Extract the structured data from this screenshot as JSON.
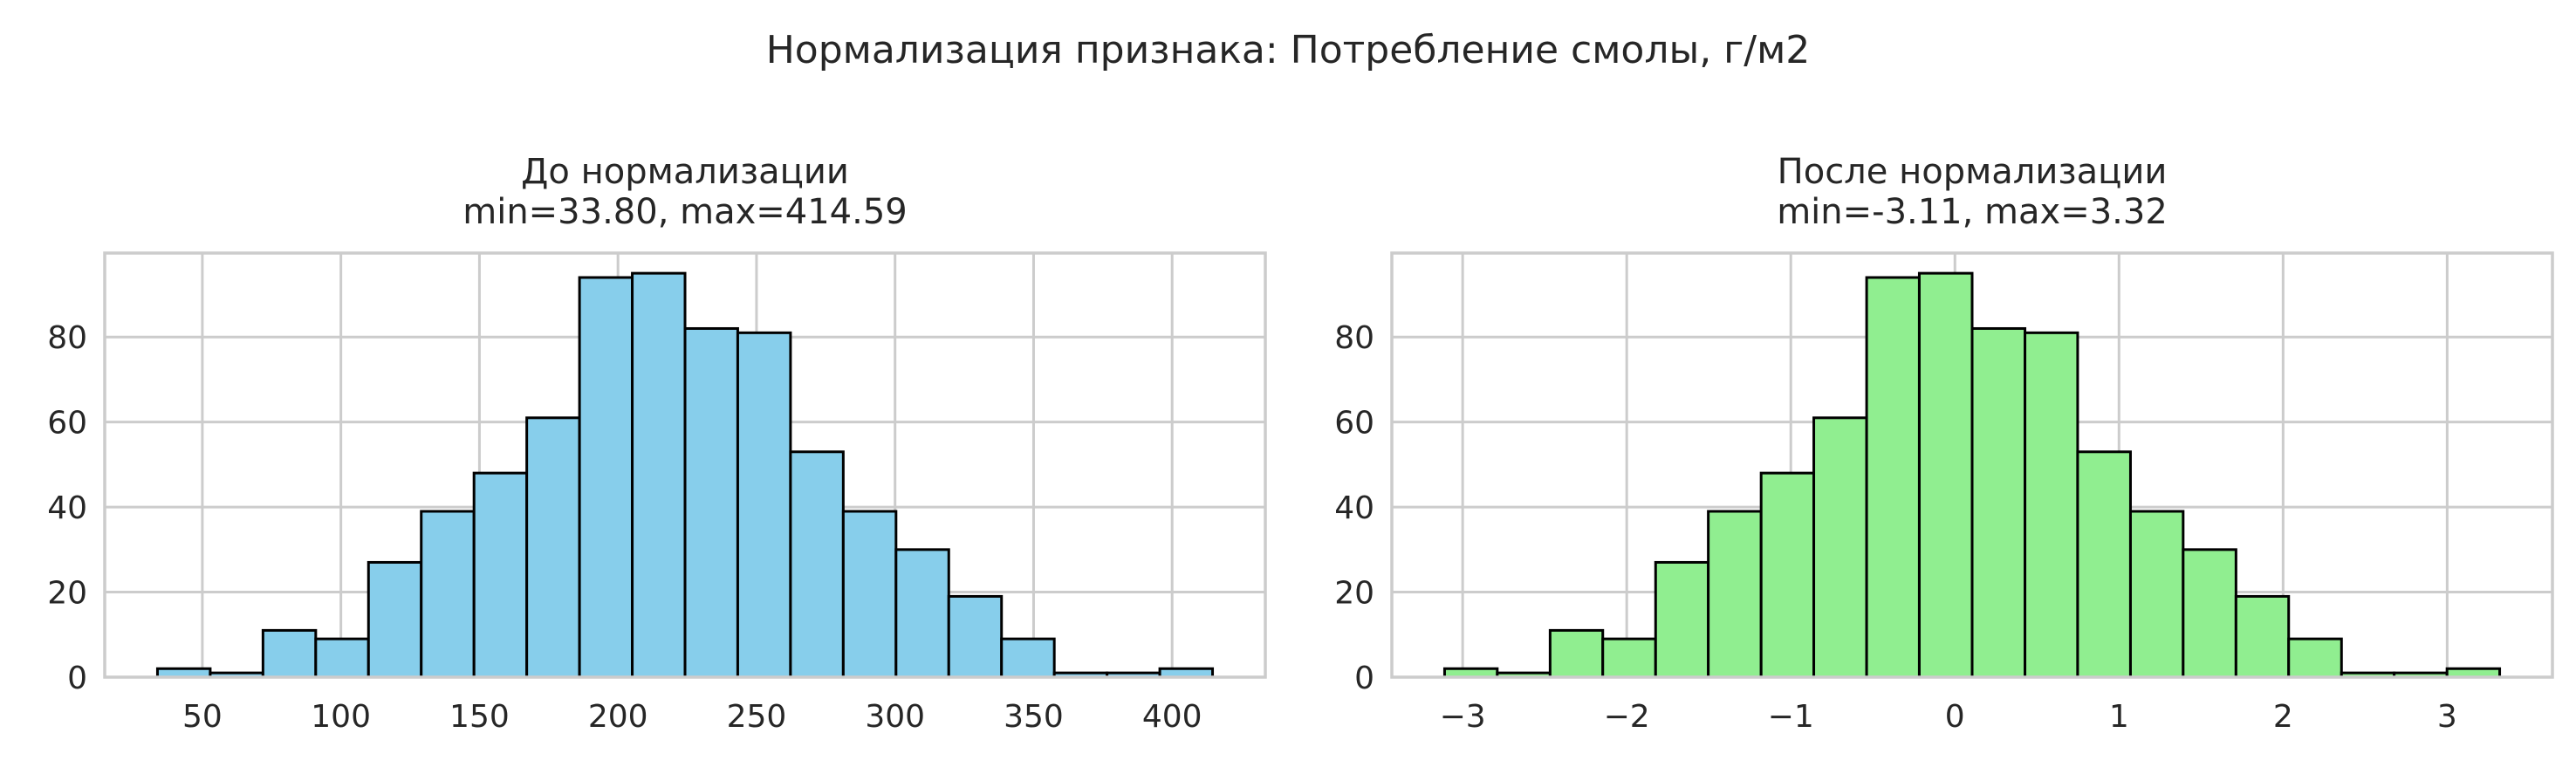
{
  "figure": {
    "suptitle": "Нормализация признака: Потребление смолы, г/м2"
  },
  "chart_data": [
    {
      "type": "bar",
      "title_line1": "До нормализации",
      "title_line2": "min=33.80, max=414.59",
      "xlabel": "",
      "ylabel": "",
      "color": "#87ceeb",
      "bin_edges": [
        33.8,
        52.84,
        71.88,
        90.92,
        109.96,
        129.0,
        148.04,
        167.08,
        186.12,
        205.16,
        224.2,
        243.23,
        262.27,
        281.31,
        300.35,
        319.39,
        338.43,
        357.47,
        376.51,
        395.55,
        414.59
      ],
      "values": [
        2,
        1,
        11,
        9,
        27,
        39,
        48,
        61,
        94,
        95,
        82,
        81,
        53,
        39,
        30,
        19,
        9,
        1,
        1,
        2
      ],
      "xlim": [
        14.76,
        433.63
      ],
      "ylim": [
        0,
        99.75
      ],
      "xticks": [
        50,
        100,
        150,
        200,
        250,
        300,
        350,
        400
      ],
      "xtick_labels": [
        "50",
        "100",
        "150",
        "200",
        "250",
        "300",
        "350",
        "400"
      ],
      "yticks": [
        0,
        20,
        40,
        60,
        80
      ],
      "ytick_labels": [
        "0",
        "20",
        "40",
        "60",
        "80"
      ],
      "grid": true
    },
    {
      "type": "bar",
      "title_line1": "После нормализации",
      "title_line2": "min=-3.11, max=3.32",
      "xlabel": "",
      "ylabel": "",
      "color": "#90ee90",
      "bin_edges": [
        -3.11,
        -2.789,
        -2.467,
        -2.146,
        -1.824,
        -1.503,
        -1.181,
        -0.86,
        -0.538,
        -0.217,
        0.105,
        0.427,
        0.748,
        1.07,
        1.391,
        1.713,
        2.034,
        2.356,
        2.677,
        2.999,
        3.32
      ],
      "values": [
        2,
        1,
        11,
        9,
        27,
        39,
        48,
        61,
        94,
        95,
        82,
        81,
        53,
        39,
        30,
        19,
        9,
        1,
        1,
        2
      ],
      "xlim": [
        -3.4315,
        3.6415
      ],
      "ylim": [
        0,
        99.75
      ],
      "xticks": [
        -3,
        -2,
        -1,
        0,
        1,
        2,
        3
      ],
      "xtick_labels": [
        "−3",
        "−2",
        "−1",
        "0",
        "1",
        "2",
        "3"
      ],
      "yticks": [
        0,
        20,
        40,
        60,
        80
      ],
      "ytick_labels": [
        "0",
        "20",
        "40",
        "60",
        "80"
      ],
      "grid": true
    }
  ]
}
